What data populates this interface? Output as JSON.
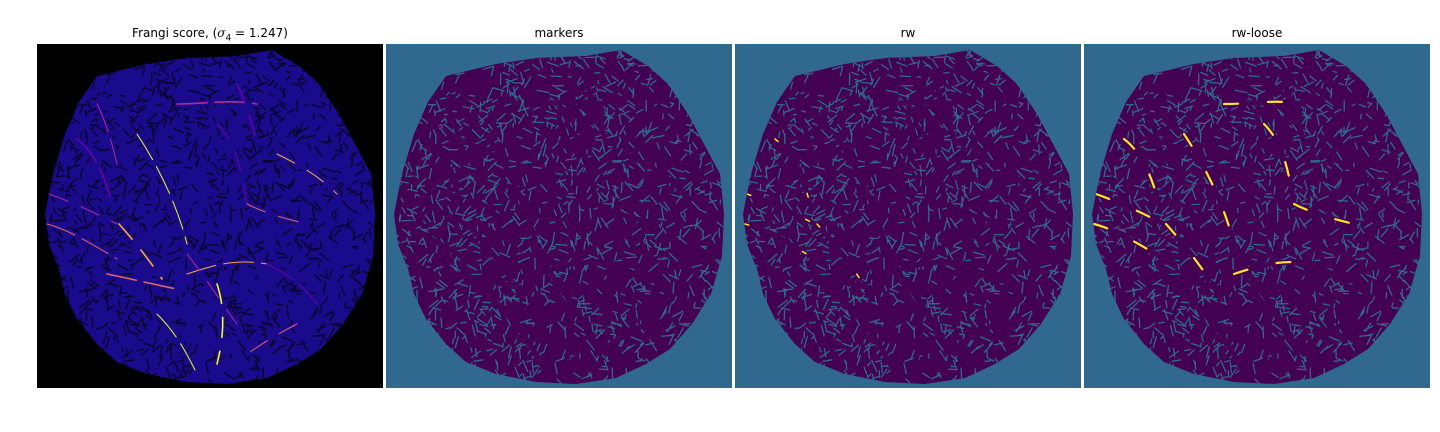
{
  "panels": [
    {
      "title_text": "Frangi score, (",
      "title_math_symbol": "σ",
      "title_math_sub": "4",
      "title_math_rest": " = 1.247)",
      "title_close": "",
      "colormap": "plasma",
      "background_color": "#000000",
      "tissue_base_color": "#1a0a8c",
      "texture_color": "#0b0633",
      "highlight_colors": [
        "#6a00a8",
        "#b12a90",
        "#e16462",
        "#fca636",
        "#f0f921"
      ]
    },
    {
      "title": "markers",
      "colormap": "viridis",
      "background_color": "#31688e",
      "tissue_base_color": "#440154",
      "texture_color": "#31688e",
      "highlight_colors": []
    },
    {
      "title": "rw",
      "colormap": "viridis",
      "background_color": "#31688e",
      "tissue_base_color": "#440154",
      "texture_color": "#31688e",
      "highlight_colors": [
        "#fde725"
      ],
      "highlight_level": "sparse"
    },
    {
      "title": "rw-loose",
      "colormap": "viridis",
      "background_color": "#31688e",
      "tissue_base_color": "#440154",
      "texture_color": "#31688e",
      "highlight_colors": [
        "#fde725"
      ],
      "highlight_level": "moderate"
    }
  ]
}
